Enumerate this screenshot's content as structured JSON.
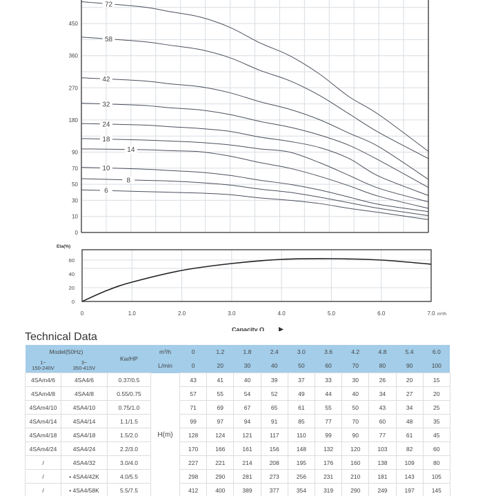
{
  "chart_data": [
    {
      "type": "line",
      "title": "",
      "xlabel": "",
      "ylabel": "",
      "x": [
        0,
        1.2,
        1.8,
        2.4,
        3.0,
        3.6,
        4.2,
        4.8,
        5.4,
        6.0,
        7.0
      ],
      "xlim": [
        0,
        7
      ],
      "y_ticks": [
        0,
        10,
        30,
        50,
        70,
        90,
        180,
        270,
        360,
        450
      ],
      "grid": true,
      "series": [
        {
          "name": "72",
          "values": [
            511,
            497,
            483,
            468,
            439,
            396,
            360,
            309,
            245,
            195,
            92
          ]
        },
        {
          "name": "58",
          "values": [
            412,
            400,
            389,
            377,
            354,
            319,
            290,
            249,
            197,
            145,
            82
          ]
        },
        {
          "name": "42",
          "values": [
            298,
            290,
            281,
            273,
            256,
            231,
            210,
            181,
            143,
            105,
            56
          ]
        },
        {
          "name": "32",
          "values": [
            227,
            221,
            214,
            208,
            195,
            176,
            160,
            138,
            109,
            80,
            46
          ]
        },
        {
          "name": "24",
          "values": [
            170,
            166,
            161,
            156,
            148,
            132,
            120,
            103,
            82,
            60,
            36
          ]
        },
        {
          "name": "18",
          "values": [
            128,
            124,
            121,
            117,
            110,
            99,
            90,
            77,
            61,
            45,
            28
          ]
        },
        {
          "name": "14",
          "values": [
            99,
            97,
            94,
            91,
            85,
            77,
            70,
            60,
            48,
            35,
            20
          ]
        },
        {
          "name": "10",
          "values": [
            71,
            69,
            67,
            65,
            61,
            55,
            50,
            43,
            34,
            25,
            16
          ]
        },
        {
          "name": "8",
          "values": [
            57,
            55,
            54,
            52,
            49,
            44,
            40,
            34,
            27,
            20,
            11
          ]
        },
        {
          "name": "6",
          "values": [
            43,
            41,
            40,
            39,
            37,
            33,
            30,
            26,
            20,
            15,
            8
          ]
        }
      ]
    },
    {
      "type": "line",
      "title": "",
      "ylabel": "Eta(%)",
      "xlabel": "Capacity Q",
      "x_unit": "m³/h",
      "x": [
        0,
        0.5,
        1,
        2,
        3,
        4,
        5,
        6,
        7
      ],
      "values": [
        0,
        16,
        28,
        45,
        55,
        61,
        62,
        60,
        54
      ],
      "xlim": [
        0,
        7
      ],
      "ylim": [
        0,
        75
      ],
      "x_ticks": [
        "0",
        "1.0",
        "2.0",
        "3.0",
        "4.0",
        "5.0",
        "6.0",
        "7.0"
      ],
      "y_ticks": [
        "0",
        "20",
        "40",
        "60"
      ],
      "grid": true
    }
  ],
  "table": {
    "title": "Technical Data",
    "header": {
      "model": "Model(50Hz)",
      "single_phase": "1~",
      "single_voltage": "150-240V",
      "three_phase": "3~",
      "three_voltage": "350-415V",
      "power": "Kw/HP",
      "flow_unit_1": "m³/h",
      "flow_unit_2": "L/min",
      "head_label": "H(m)"
    },
    "q_m3h": [
      "0",
      "1.2",
      "1.8",
      "2.4",
      "3.0",
      "3.6",
      "4.2",
      "4.8",
      "5.4",
      "6.0"
    ],
    "q_lmin": [
      "0",
      "20",
      "30",
      "40",
      "50",
      "60",
      "70",
      "80",
      "90",
      "100"
    ],
    "rows": [
      {
        "m1": "4SAm4/6",
        "m2": "4SA4/6",
        "kw": "0.37/0.5",
        "h": [
          "43",
          "41",
          "40",
          "39",
          "37",
          "33",
          "30",
          "26",
          "20",
          "15"
        ]
      },
      {
        "m1": "4SAm4/8",
        "m2": "4SA4/8",
        "kw": "0.55/0.75",
        "h": [
          "57",
          "55",
          "54",
          "52",
          "49",
          "44",
          "40",
          "34",
          "27",
          "20"
        ]
      },
      {
        "m1": "4SAm4/10",
        "m2": "4SA4/10",
        "kw": "0.75/1.0",
        "h": [
          "71",
          "69",
          "67",
          "65",
          "61",
          "55",
          "50",
          "43",
          "34",
          "25"
        ]
      },
      {
        "m1": "4SAm4/14",
        "m2": "4SA4/14",
        "kw": "1.1/1.5",
        "h": [
          "99",
          "97",
          "94",
          "91",
          "85",
          "77",
          "70",
          "60",
          "48",
          "35"
        ]
      },
      {
        "m1": "4SAm4/18",
        "m2": "4SA4/18",
        "kw": "1.5/2.0",
        "h": [
          "128",
          "124",
          "121",
          "117",
          "110",
          "99",
          "90",
          "77",
          "61",
          "45"
        ]
      },
      {
        "m1": "4SAm4/24",
        "m2": "4SA4/24",
        "kw": "2.2/3.0",
        "h": [
          "170",
          "166",
          "161",
          "156",
          "148",
          "132",
          "120",
          "103",
          "82",
          "60"
        ]
      },
      {
        "m1": "/",
        "m2": "4SA4/32",
        "kw": "3.0/4.0",
        "h": [
          "227",
          "221",
          "214",
          "208",
          "195",
          "176",
          "160",
          "138",
          "109",
          "80"
        ]
      },
      {
        "m1": "/",
        "m2": "• 4SA4/42K",
        "kw": "4.0/5.5",
        "h": [
          "298",
          "290",
          "281",
          "273",
          "256",
          "231",
          "210",
          "181",
          "143",
          "105"
        ]
      },
      {
        "m1": "/",
        "m2": "• 4SA4/58K",
        "kw": "5.5/7.5",
        "h": [
          "412",
          "400",
          "389",
          "377",
          "354",
          "319",
          "290",
          "249",
          "197",
          "145"
        ]
      }
    ]
  },
  "colors": {
    "header_bg": "#a3cde9",
    "curve": "#4a4f5a",
    "grid": "#d8dde2"
  }
}
